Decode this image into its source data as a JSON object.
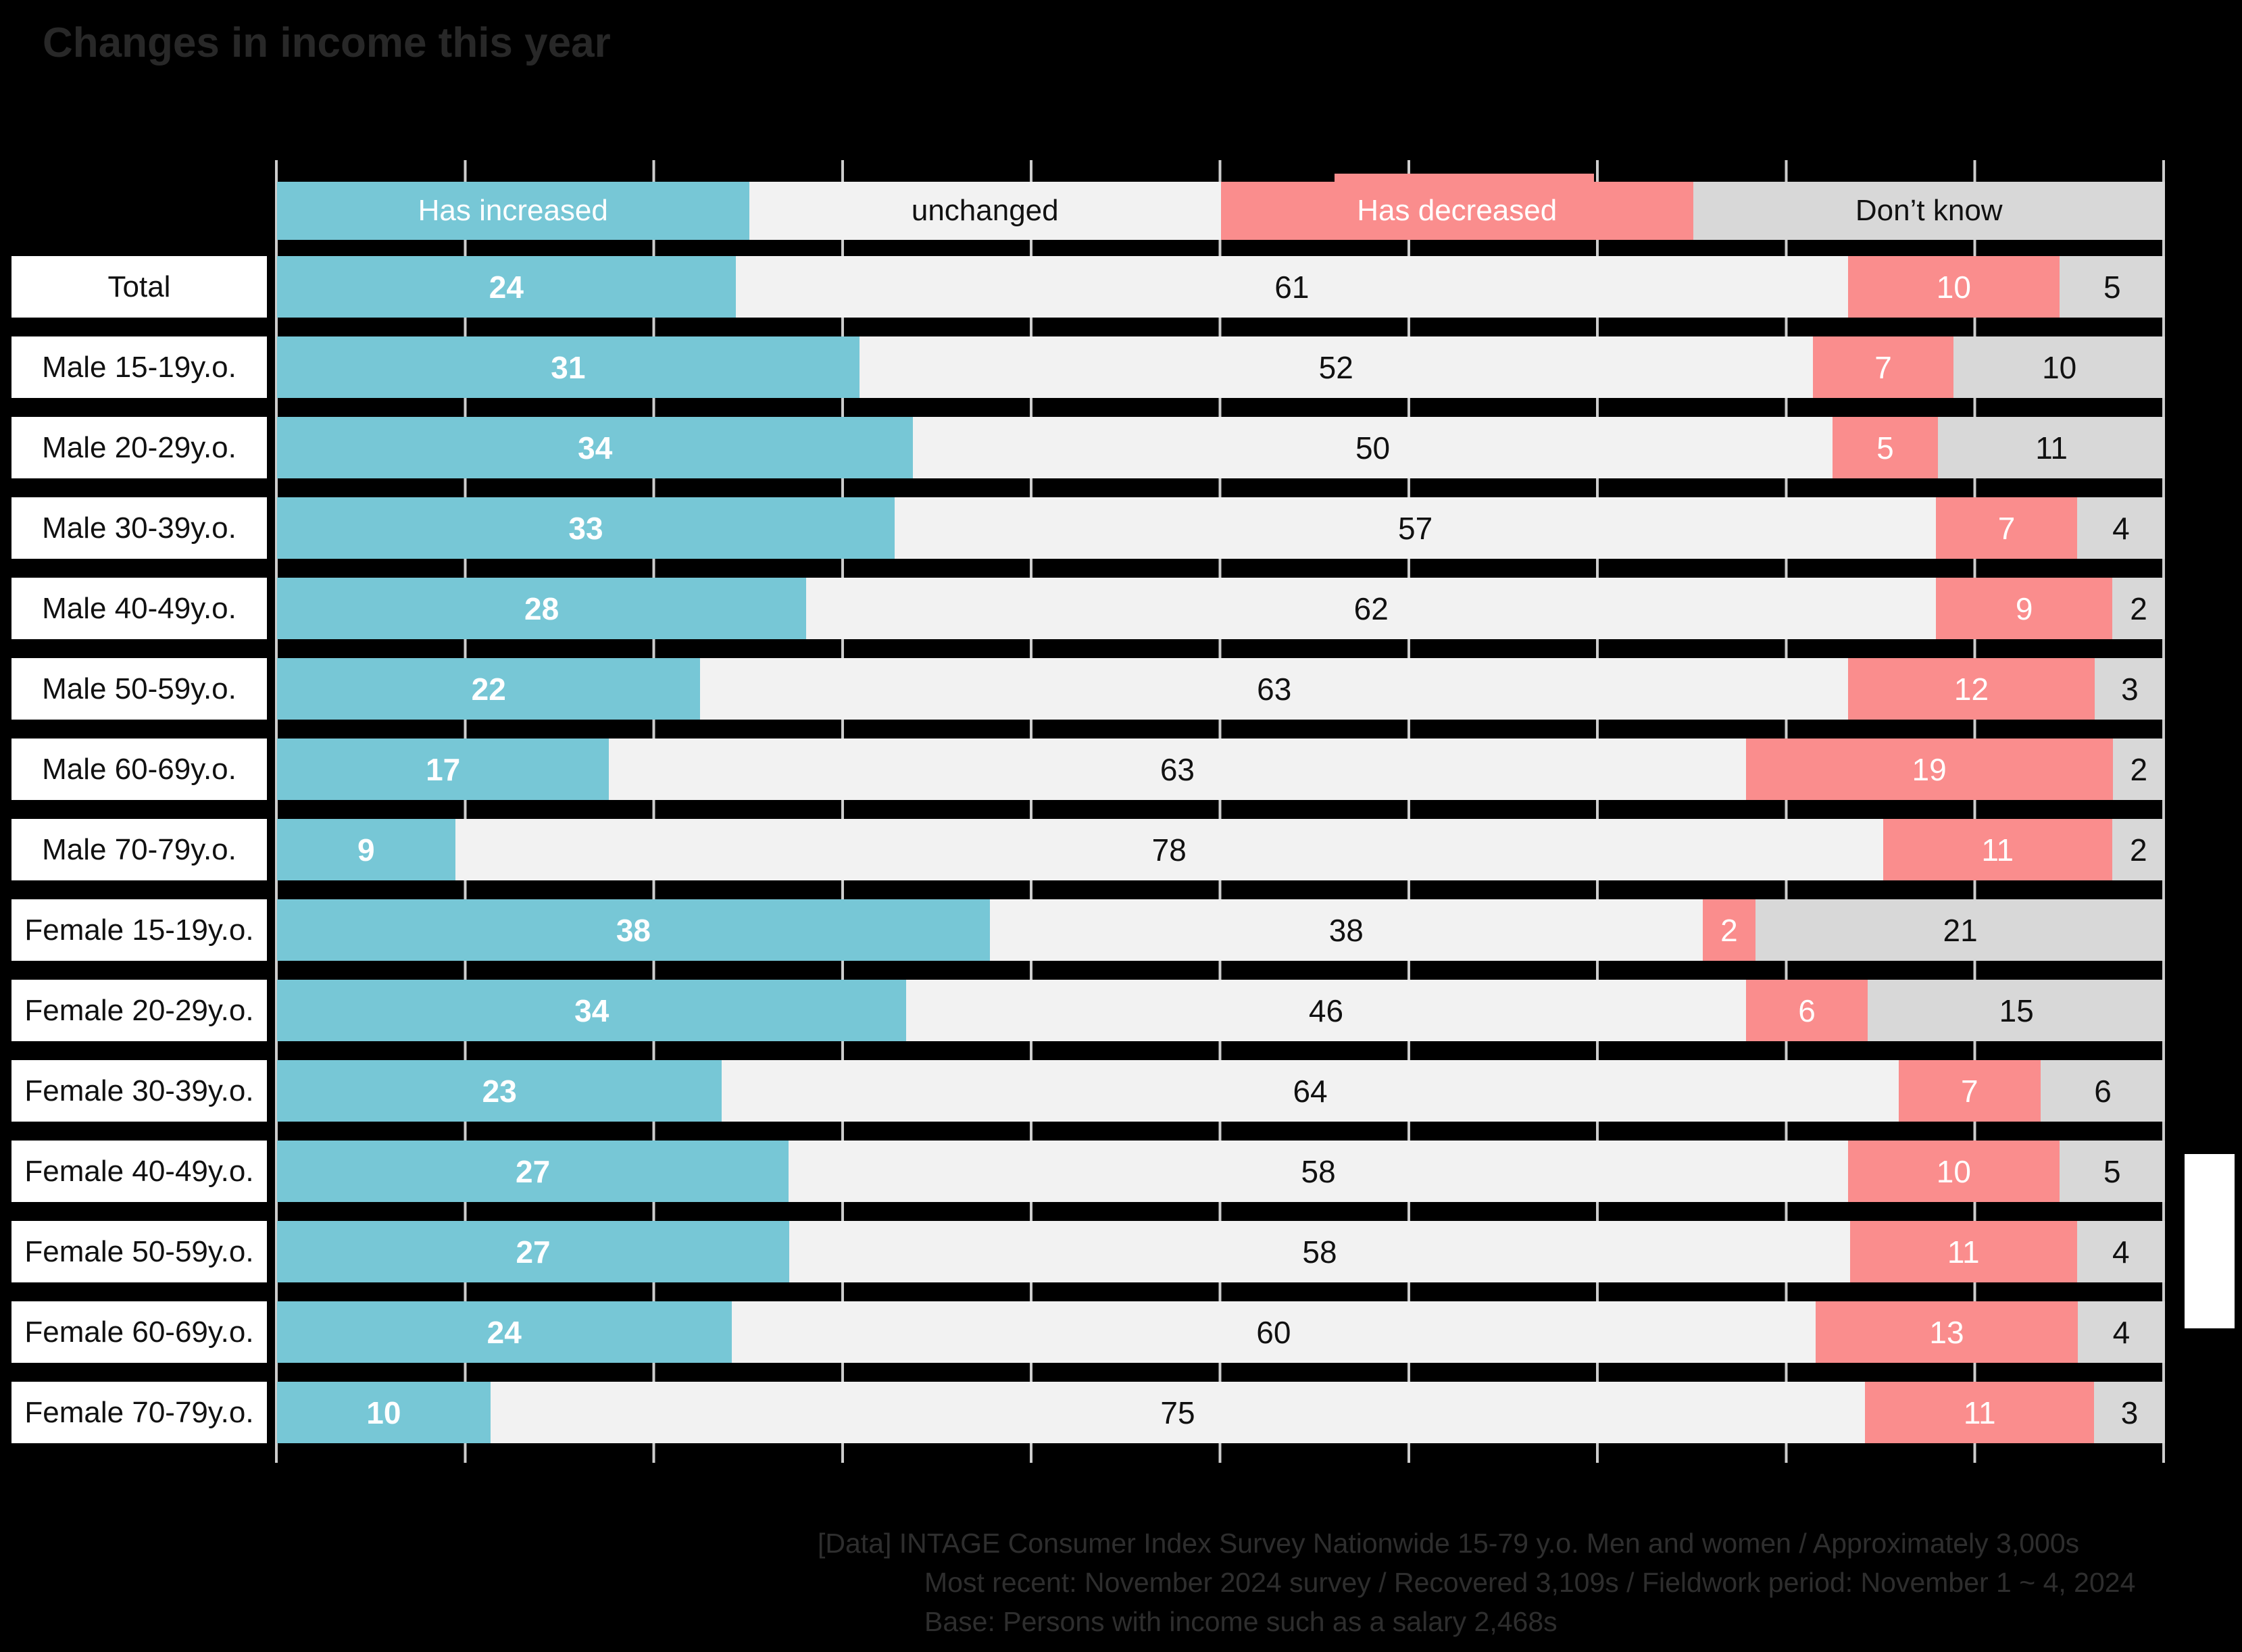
{
  "title": "Changes in income this year",
  "colors": {
    "background": "#000000",
    "increased": "#77c7d6",
    "unchanged": "#f2f2f2",
    "decreased": "#fa8d8d",
    "dont_know": "#d8d8d8",
    "gridline": "#cdcdcd",
    "label_box": "#ffffff",
    "dark_text": "#111111",
    "light_text": "#ffffff",
    "title_text": "#282828",
    "footer_text": "#2e2e2e"
  },
  "chart_data": {
    "type": "bar",
    "orientation": "horizontal",
    "stacked": true,
    "title": "Changes in income this year",
    "x_axis": {
      "min": 0,
      "max": 100,
      "gridline_interval": 10,
      "grid": true,
      "unit": "%"
    },
    "legend_position": "top",
    "categories": [
      "Total",
      "Male 15-19y.o.",
      "Male 20-29y.o.",
      "Male 30-39y.o.",
      "Male 40-49y.o.",
      "Male 50-59y.o.",
      "Male 60-69y.o.",
      "Male 70-79y.o.",
      "Female 15-19y.o.",
      "Female 20-29y.o.",
      "Female 30-39y.o.",
      "Female 40-49y.o.",
      "Female 50-59y.o.",
      "Female 60-69y.o.",
      "Female 70-79y.o."
    ],
    "series": [
      {
        "name": "Has increased",
        "color": "#77c7d6",
        "text_color": "#ffffff",
        "bold_values": true,
        "values": [
          24,
          31,
          34,
          33,
          28,
          22,
          17,
          9,
          38,
          34,
          23,
          27,
          27,
          24,
          10
        ]
      },
      {
        "name": "unchanged",
        "color": "#f2f2f2",
        "text_color": "#111111",
        "bold_values": false,
        "values": [
          61,
          52,
          50,
          57,
          62,
          63,
          63,
          78,
          38,
          46,
          64,
          58,
          58,
          60,
          75
        ]
      },
      {
        "name": "Has decreased",
        "color": "#fa8d8d",
        "text_color": "#ffffff",
        "bold_values": false,
        "values": [
          10,
          7,
          5,
          7,
          9,
          12,
          19,
          11,
          2,
          6,
          7,
          10,
          11,
          13,
          11
        ]
      },
      {
        "name": "Don’t know",
        "color": "#d8d8d8",
        "text_color": "#111111",
        "bold_values": false,
        "values": [
          5,
          10,
          11,
          4,
          2,
          3,
          2,
          2,
          21,
          15,
          6,
          5,
          4,
          4,
          3
        ]
      }
    ]
  },
  "footer": {
    "lines": [
      "[Data] INTAGE Consumer Index Survey Nationwide 15-79 y.o. Men and women / Approximately 3,000s",
      "Most recent: November 2024 survey / Recovered 3,109s / Fieldwork period: November 1 ~ 4, 2024",
      "Base: Persons with income such as a salary 2,468s"
    ]
  }
}
